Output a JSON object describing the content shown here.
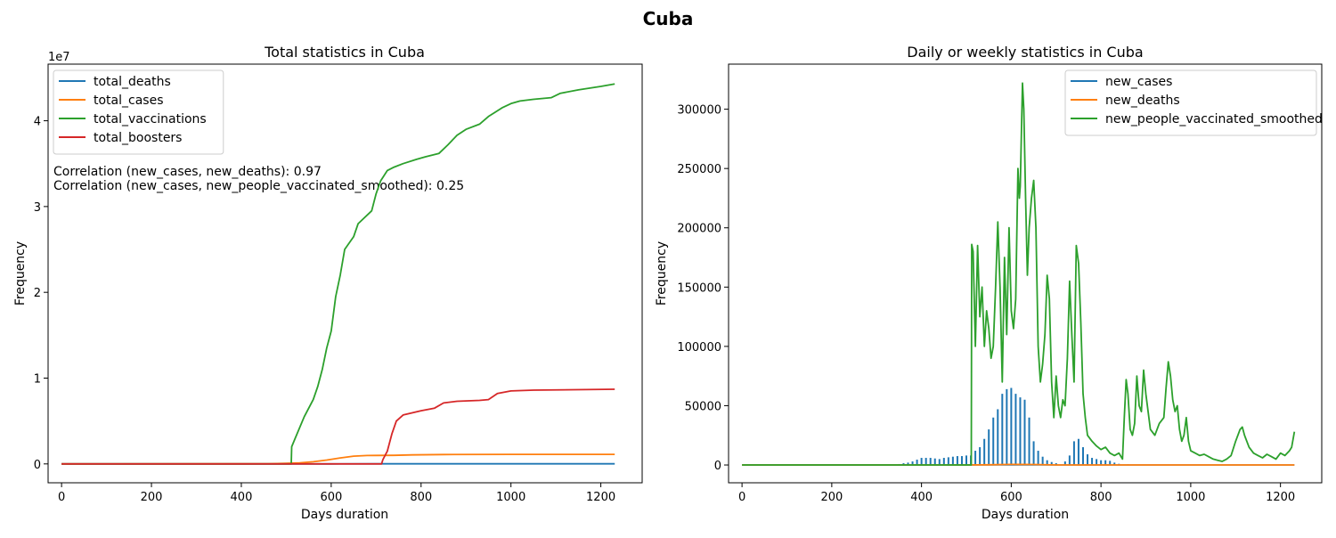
{
  "figure": {
    "title": "Cuba"
  },
  "chart_data": [
    {
      "type": "line",
      "title": "Total statistics in Cuba",
      "xlabel": "Days duration",
      "ylabel": "Frequency",
      "xlim": [
        -30,
        1292
      ],
      "ylim": [
        -2200000,
        46600000
      ],
      "xticks": [
        0,
        200,
        400,
        600,
        800,
        1000,
        1200
      ],
      "yticks": [
        0,
        10000000,
        20000000,
        30000000,
        40000000
      ],
      "ytick_labels": [
        "0",
        "1",
        "2",
        "3",
        "4"
      ],
      "offset_label": "1e7",
      "legend": "top-left",
      "grid": false,
      "annotations": [
        "Correlation (new_cases, new_deaths): 0.97",
        "Correlation (new_cases, new_people_vaccinated_smoothed): 0.25"
      ],
      "series": [
        {
          "name": "total_deaths",
          "color": "#1f77b4",
          "points": [
            [
              0,
              0
            ],
            [
              300,
              0
            ],
            [
              400,
              1000
            ],
            [
              500,
              2000
            ],
            [
              600,
              5000
            ],
            [
              700,
              8000
            ],
            [
              800,
              8500
            ],
            [
              1231,
              8530
            ]
          ]
        },
        {
          "name": "total_cases",
          "color": "#ff7f0e",
          "points": [
            [
              0,
              0
            ],
            [
              400,
              12000
            ],
            [
              460,
              25000
            ],
            [
              500,
              60000
            ],
            [
              530,
              120000
            ],
            [
              560,
              250000
            ],
            [
              590,
              450000
            ],
            [
              620,
              700000
            ],
            [
              650,
              900000
            ],
            [
              680,
              980000
            ],
            [
              700,
              990000
            ],
            [
              740,
              1000000
            ],
            [
              780,
              1050000
            ],
            [
              850,
              1090000
            ],
            [
              1000,
              1110000
            ],
            [
              1231,
              1112000
            ]
          ]
        },
        {
          "name": "total_vaccinations",
          "color": "#2ca02c",
          "points": [
            [
              0,
              0
            ],
            [
              511,
              0
            ],
            [
              512,
              2000000
            ],
            [
              520,
              3000000
            ],
            [
              540,
              5500000
            ],
            [
              560,
              7500000
            ],
            [
              570,
              9000000
            ],
            [
              580,
              11000000
            ],
            [
              590,
              13500000
            ],
            [
              600,
              15500000
            ],
            [
              610,
              19500000
            ],
            [
              620,
              22000000
            ],
            [
              630,
              25000000
            ],
            [
              650,
              26500000
            ],
            [
              660,
              28000000
            ],
            [
              690,
              29500000
            ],
            [
              700,
              31500000
            ],
            [
              710,
              33000000
            ],
            [
              725,
              34200000
            ],
            [
              740,
              34600000
            ],
            [
              760,
              35000000
            ],
            [
              790,
              35500000
            ],
            [
              810,
              35800000
            ],
            [
              840,
              36200000
            ],
            [
              860,
              37200000
            ],
            [
              880,
              38300000
            ],
            [
              900,
              39000000
            ],
            [
              930,
              39600000
            ],
            [
              950,
              40500000
            ],
            [
              980,
              41500000
            ],
            [
              1000,
              42000000
            ],
            [
              1020,
              42300000
            ],
            [
              1050,
              42500000
            ],
            [
              1090,
              42700000
            ],
            [
              1110,
              43200000
            ],
            [
              1150,
              43600000
            ],
            [
              1200,
              44000000
            ],
            [
              1231,
              44300000
            ]
          ]
        },
        {
          "name": "total_boosters",
          "color": "#d62728",
          "points": [
            [
              0,
              0
            ],
            [
              712,
              0
            ],
            [
              715,
              500000
            ],
            [
              725,
              1500000
            ],
            [
              735,
              3500000
            ],
            [
              745,
              5000000
            ],
            [
              760,
              5700000
            ],
            [
              800,
              6200000
            ],
            [
              830,
              6500000
            ],
            [
              850,
              7100000
            ],
            [
              880,
              7300000
            ],
            [
              930,
              7400000
            ],
            [
              950,
              7500000
            ],
            [
              970,
              8200000
            ],
            [
              1000,
              8500000
            ],
            [
              1050,
              8600000
            ],
            [
              1231,
              8700000
            ]
          ]
        }
      ]
    },
    {
      "type": "line",
      "title": "Daily or weekly statistics in Cuba",
      "xlabel": "Days duration",
      "ylabel": "Frequency",
      "xlim": [
        -30,
        1292
      ],
      "ylim": [
        -15000,
        338000
      ],
      "xticks": [
        0,
        200,
        400,
        600,
        800,
        1000,
        1200
      ],
      "yticks": [
        0,
        50000,
        100000,
        150000,
        200000,
        250000,
        300000
      ],
      "legend": "top-right",
      "grid": false,
      "series": [
        {
          "name": "new_cases",
          "color": "#1f77b4",
          "style": "spikes",
          "points": [
            [
              350,
              800
            ],
            [
              360,
              1500
            ],
            [
              370,
              2000
            ],
            [
              380,
              3000
            ],
            [
              390,
              4500
            ],
            [
              400,
              6000
            ],
            [
              410,
              6000
            ],
            [
              420,
              6000
            ],
            [
              430,
              5500
            ],
            [
              440,
              5000
            ],
            [
              450,
              6000
            ],
            [
              460,
              6500
            ],
            [
              470,
              7000
            ],
            [
              480,
              7500
            ],
            [
              490,
              7500
            ],
            [
              500,
              8000
            ],
            [
              510,
              8000
            ],
            [
              520,
              12000
            ],
            [
              530,
              15000
            ],
            [
              540,
              22000
            ],
            [
              550,
              30000
            ],
            [
              560,
              40000
            ],
            [
              570,
              47000
            ],
            [
              580,
              60000
            ],
            [
              590,
              64000
            ],
            [
              600,
              65000
            ],
            [
              610,
              60000
            ],
            [
              620,
              57000
            ],
            [
              630,
              55000
            ],
            [
              640,
              40000
            ],
            [
              650,
              20000
            ],
            [
              660,
              12000
            ],
            [
              670,
              7000
            ],
            [
              680,
              4000
            ],
            [
              690,
              2500
            ],
            [
              700,
              1500
            ],
            [
              720,
              3000
            ],
            [
              730,
              8000
            ],
            [
              740,
              20000
            ],
            [
              750,
              22000
            ],
            [
              760,
              15000
            ],
            [
              770,
              9000
            ],
            [
              780,
              6000
            ],
            [
              790,
              5000
            ],
            [
              800,
              4000
            ],
            [
              810,
              4000
            ],
            [
              820,
              3500
            ],
            [
              830,
              2000
            ],
            [
              840,
              1000
            ],
            [
              860,
              500
            ]
          ]
        },
        {
          "name": "new_deaths",
          "color": "#ff7f0e",
          "points": [
            [
              0,
              0
            ],
            [
              500,
              50
            ],
            [
              550,
              200
            ],
            [
              600,
              500
            ],
            [
              650,
              400
            ],
            [
              700,
              50
            ],
            [
              1231,
              0
            ]
          ]
        },
        {
          "name": "new_people_vaccinated_smoothed",
          "color": "#2ca02c",
          "points": [
            [
              0,
              0
            ],
            [
              511,
              0
            ],
            [
              512,
              186000
            ],
            [
              515,
              180000
            ],
            [
              520,
              100000
            ],
            [
              525,
              185000
            ],
            [
              530,
              125000
            ],
            [
              535,
              150000
            ],
            [
              540,
              100000
            ],
            [
              545,
              130000
            ],
            [
              550,
              115000
            ],
            [
              555,
              90000
            ],
            [
              560,
              100000
            ],
            [
              565,
              150000
            ],
            [
              570,
              205000
            ],
            [
              575,
              150000
            ],
            [
              580,
              70000
            ],
            [
              585,
              175000
            ],
            [
              590,
              110000
            ],
            [
              595,
              200000
            ],
            [
              600,
              130000
            ],
            [
              605,
              115000
            ],
            [
              610,
              140000
            ],
            [
              615,
              250000
            ],
            [
              618,
              225000
            ],
            [
              620,
              235000
            ],
            [
              625,
              322000
            ],
            [
              628,
              300000
            ],
            [
              632,
              225000
            ],
            [
              636,
              160000
            ],
            [
              640,
              200000
            ],
            [
              645,
              225000
            ],
            [
              650,
              240000
            ],
            [
              655,
              200000
            ],
            [
              660,
              100000
            ],
            [
              665,
              70000
            ],
            [
              670,
              85000
            ],
            [
              675,
              110000
            ],
            [
              680,
              160000
            ],
            [
              685,
              140000
            ],
            [
              690,
              70000
            ],
            [
              695,
              40000
            ],
            [
              700,
              75000
            ],
            [
              705,
              50000
            ],
            [
              710,
              40000
            ],
            [
              715,
              55000
            ],
            [
              720,
              50000
            ],
            [
              725,
              90000
            ],
            [
              730,
              155000
            ],
            [
              735,
              110000
            ],
            [
              740,
              70000
            ],
            [
              745,
              185000
            ],
            [
              750,
              170000
            ],
            [
              755,
              120000
            ],
            [
              760,
              60000
            ],
            [
              765,
              40000
            ],
            [
              770,
              25000
            ],
            [
              780,
              20000
            ],
            [
              790,
              16000
            ],
            [
              800,
              13000
            ],
            [
              810,
              15000
            ],
            [
              820,
              10000
            ],
            [
              830,
              8000
            ],
            [
              840,
              10000
            ],
            [
              848,
              5000
            ],
            [
              852,
              40000
            ],
            [
              856,
              72000
            ],
            [
              860,
              60000
            ],
            [
              865,
              30000
            ],
            [
              870,
              25000
            ],
            [
              875,
              35000
            ],
            [
              880,
              75000
            ],
            [
              885,
              50000
            ],
            [
              890,
              45000
            ],
            [
              895,
              80000
            ],
            [
              900,
              60000
            ],
            [
              910,
              30000
            ],
            [
              920,
              25000
            ],
            [
              930,
              35000
            ],
            [
              940,
              40000
            ],
            [
              945,
              65000
            ],
            [
              950,
              87000
            ],
            [
              955,
              75000
            ],
            [
              960,
              55000
            ],
            [
              965,
              45000
            ],
            [
              970,
              50000
            ],
            [
              975,
              30000
            ],
            [
              980,
              20000
            ],
            [
              985,
              25000
            ],
            [
              990,
              40000
            ],
            [
              995,
              20000
            ],
            [
              1000,
              12000
            ],
            [
              1010,
              10000
            ],
            [
              1020,
              8000
            ],
            [
              1030,
              9000
            ],
            [
              1040,
              7000
            ],
            [
              1050,
              5000
            ],
            [
              1060,
              4000
            ],
            [
              1070,
              3000
            ],
            [
              1080,
              5000
            ],
            [
              1090,
              8000
            ],
            [
              1100,
              20000
            ],
            [
              1110,
              30000
            ],
            [
              1115,
              32000
            ],
            [
              1120,
              25000
            ],
            [
              1130,
              15000
            ],
            [
              1140,
              10000
            ],
            [
              1150,
              8000
            ],
            [
              1160,
              6000
            ],
            [
              1170,
              9000
            ],
            [
              1180,
              7000
            ],
            [
              1190,
              5000
            ],
            [
              1200,
              10000
            ],
            [
              1210,
              8000
            ],
            [
              1220,
              12000
            ],
            [
              1225,
              15000
            ],
            [
              1231,
              28000
            ]
          ]
        }
      ]
    }
  ]
}
